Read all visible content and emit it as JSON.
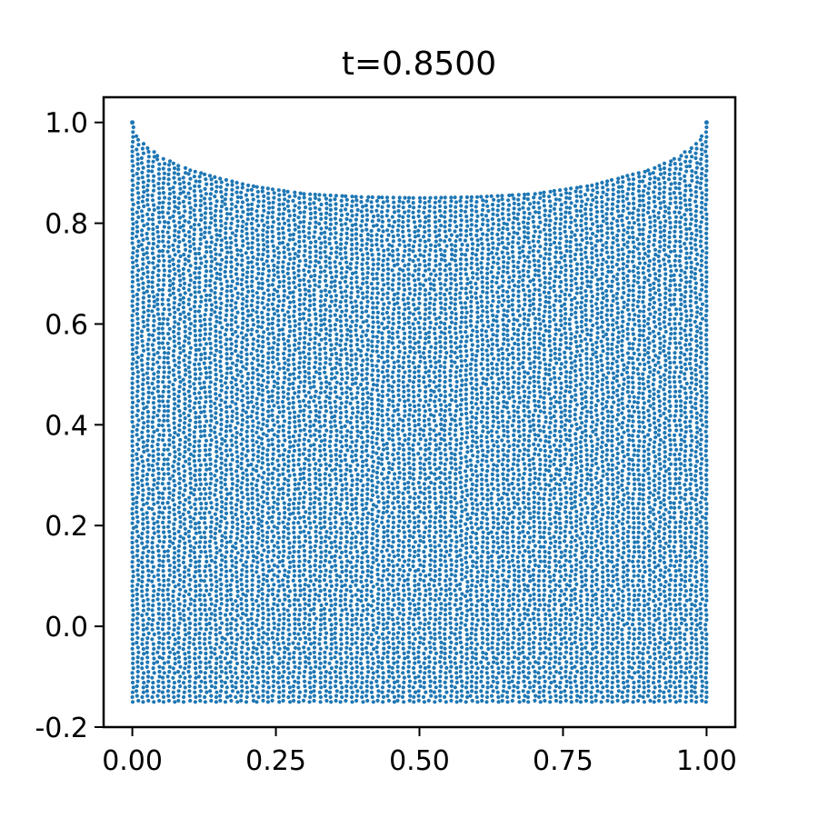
{
  "chart_data": {
    "type": "scatter",
    "title": "t=0.8500",
    "xlabel": "",
    "ylabel": "",
    "xlim": [
      -0.05,
      1.05
    ],
    "ylim": [
      -0.2,
      1.05
    ],
    "xticks": [
      "0.00",
      "0.25",
      "0.50",
      "0.75",
      "1.00"
    ],
    "yticks": [
      "-0.2",
      "0.0",
      "0.2",
      "0.4",
      "0.6",
      "0.8",
      "1.0"
    ],
    "grid": false,
    "legend": "none",
    "series": [
      {
        "color": "#1f77b4",
        "marker": "dot",
        "points": "dense uniform particle cloud",
        "x_range": [
          0.0,
          1.0
        ],
        "y_bottom": -0.15,
        "top_boundary": {
          "x": [
            0.0,
            0.01,
            0.02,
            0.05,
            0.1,
            0.2,
            0.3,
            0.4,
            0.5,
            0.6,
            0.7,
            0.8,
            0.9,
            0.95,
            0.98,
            0.99,
            1.0
          ],
          "y": [
            1.0,
            0.97,
            0.955,
            0.93,
            0.905,
            0.875,
            0.858,
            0.852,
            0.85,
            0.852,
            0.858,
            0.875,
            0.905,
            0.93,
            0.955,
            0.97,
            1.0
          ]
        }
      }
    ]
  }
}
